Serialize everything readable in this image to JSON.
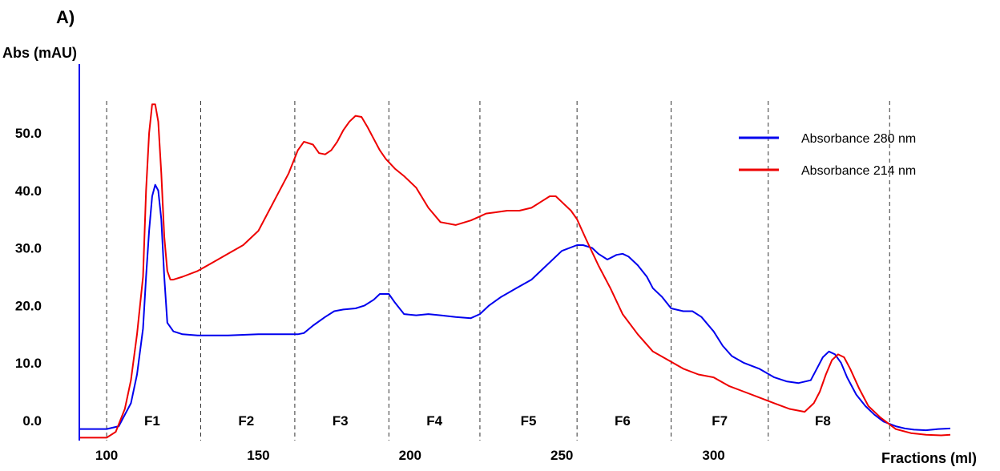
{
  "chart_data": {
    "type": "line",
    "panel_label": "A)",
    "ylabel": "Abs (mAU)",
    "xlabel": "Fractions (ml)",
    "xlim": [
      91,
      378
    ],
    "ylim": [
      -3.5,
      62
    ],
    "x_ticks": [
      100,
      150,
      200,
      250,
      300
    ],
    "x_tick_labels": [
      "100",
      "150",
      "200",
      "250",
      "300"
    ],
    "y_ticks": [
      0,
      10,
      20,
      30,
      40,
      50
    ],
    "y_tick_labels": [
      "0.0",
      "10.0",
      "20.0",
      "30.0",
      "40.0",
      "50.0"
    ],
    "fraction_dividers": [
      100,
      131,
      162,
      193,
      223,
      255,
      286,
      318,
      358
    ],
    "fractions": [
      {
        "label": "F1",
        "x": 115
      },
      {
        "label": "F2",
        "x": 146
      },
      {
        "label": "F3",
        "x": 177
      },
      {
        "label": "F4",
        "x": 208
      },
      {
        "label": "F5",
        "x": 239
      },
      {
        "label": "F6",
        "x": 270
      },
      {
        "label": "F7",
        "x": 302
      },
      {
        "label": "F8",
        "x": 336
      }
    ],
    "legend_position": "top-right",
    "series": [
      {
        "name": "Absorbance 280 nm",
        "color": "#0000ee",
        "x": [
          91,
          100,
          104,
          108,
          110,
          112,
          113,
          114,
          115,
          116,
          117,
          118,
          119,
          120,
          122,
          125,
          130,
          140,
          150,
          160,
          163,
          165,
          168,
          172,
          175,
          178,
          182,
          185,
          188,
          190,
          193,
          195,
          198,
          202,
          206,
          210,
          215,
          220,
          223,
          226,
          230,
          235,
          240,
          245,
          250,
          255,
          257,
          260,
          262,
          265,
          268,
          270,
          272,
          275,
          278,
          280,
          283,
          286,
          290,
          293,
          296,
          300,
          303,
          306,
          310,
          315,
          320,
          324,
          328,
          332,
          334,
          336,
          338,
          340,
          342,
          344,
          347,
          350,
          353,
          356,
          360,
          363,
          366,
          370,
          374,
          378
        ],
        "y": [
          -1.5,
          -1.5,
          -1,
          3,
          8,
          16,
          25,
          33,
          39,
          41,
          40,
          35,
          25,
          17,
          15.5,
          15,
          14.8,
          14.8,
          15,
          15,
          15,
          15.2,
          16.5,
          18,
          19,
          19.3,
          19.5,
          20,
          21,
          22,
          22,
          20.5,
          18.5,
          18.3,
          18.5,
          18.3,
          18,
          17.8,
          18.5,
          20,
          21.5,
          23,
          24.5,
          27,
          29.5,
          30.5,
          30.5,
          30,
          29,
          28,
          28.8,
          29,
          28.5,
          27,
          25,
          23,
          21.5,
          19.5,
          19,
          19,
          18,
          15.5,
          13,
          11.2,
          10,
          9,
          7.5,
          6.8,
          6.5,
          7,
          9,
          11,
          12,
          11.5,
          10,
          7.5,
          4.5,
          2.5,
          1,
          -0.2,
          -1,
          -1.4,
          -1.6,
          -1.7,
          -1.5,
          -1.4
        ]
      },
      {
        "name": "Absorbance 214 nm",
        "color": "#ee0000",
        "x": [
          91,
          100,
          103,
          106,
          108,
          110,
          112,
          113,
          114,
          115,
          116,
          117,
          118,
          119,
          120,
          121,
          122,
          125,
          130,
          135,
          140,
          145,
          150,
          155,
          160,
          163,
          165,
          168,
          170,
          172,
          174,
          176,
          178,
          180,
          182,
          184,
          186,
          188,
          190,
          192,
          195,
          198,
          202,
          206,
          210,
          215,
          220,
          223,
          225,
          228,
          232,
          236,
          240,
          243,
          246,
          248,
          250,
          253,
          255,
          258,
          262,
          266,
          270,
          275,
          280,
          285,
          290,
          295,
          300,
          305,
          310,
          315,
          320,
          325,
          330,
          333,
          335,
          337,
          339,
          341,
          343,
          345,
          348,
          351,
          355,
          360,
          365,
          370,
          375,
          378
        ],
        "y": [
          -3,
          -3,
          -2,
          2,
          7,
          15,
          25,
          40,
          50,
          55,
          55,
          52,
          43,
          32,
          26,
          24.5,
          24.5,
          25,
          26,
          27.5,
          29,
          30.5,
          33,
          38,
          43,
          47,
          48.5,
          48,
          46.5,
          46.3,
          47,
          48.5,
          50.5,
          52,
          53,
          52.8,
          51,
          49,
          47,
          45.5,
          43.8,
          42.5,
          40.5,
          37,
          34.5,
          34,
          34.8,
          35.5,
          36,
          36.2,
          36.5,
          36.5,
          37,
          38,
          39,
          39,
          38,
          36.5,
          35,
          31.5,
          27,
          23,
          18.5,
          15,
          12,
          10.5,
          9,
          8,
          7.5,
          6,
          5,
          4,
          3,
          2,
          1.5,
          3,
          5,
          8,
          10.5,
          11.5,
          11,
          9,
          5.5,
          2.5,
          0.5,
          -1.5,
          -2.2,
          -2.5,
          -2.6,
          -2.5
        ]
      }
    ]
  }
}
